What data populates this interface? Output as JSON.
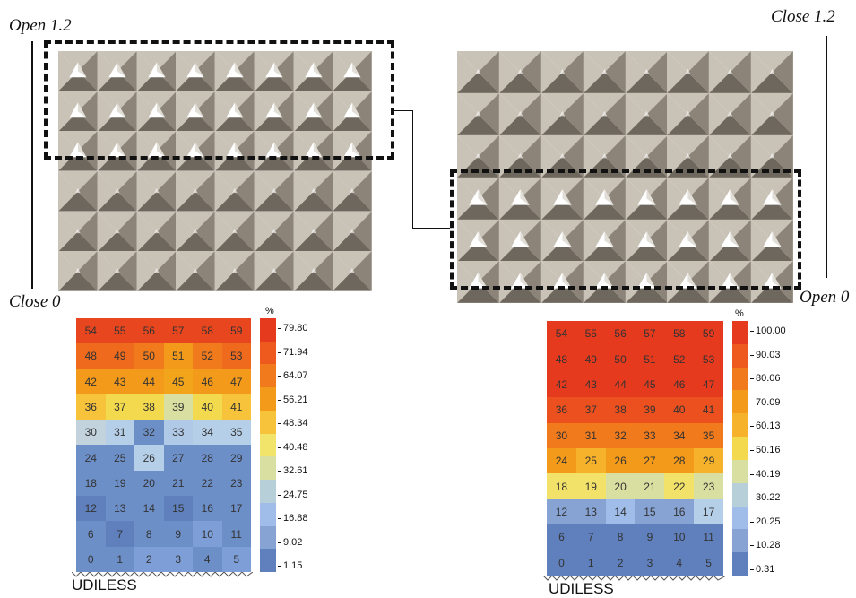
{
  "labels": {
    "open_top_left": "Open 1.2",
    "close_bottom_left": "Close 0",
    "close_top_right": "Close 1.2",
    "open_bottom_right": "Open 0"
  },
  "colors": {
    "panel_light": "#ffffff",
    "panel_mid": "#c9c2b6",
    "panel_dark": "#8c8478",
    "panel_shadow": "#6e675d"
  },
  "left_chart": {
    "unit": "%",
    "footer": "UDILESS",
    "colorbar_ticks": [
      "79.80",
      "71.94",
      "64.07",
      "56.21",
      "48.34",
      "40.48",
      "32.61",
      "24.75",
      "16.88",
      "9.02",
      "1.15"
    ],
    "colorbar_colors": [
      "#e63a1e",
      "#ee5a1e",
      "#f07a1c",
      "#f39a1a",
      "#f6c33a",
      "#f2e46a",
      "#d8dfa0",
      "#b6cfd8",
      "#9fbde8",
      "#86a3d4",
      "#5f80bd"
    ],
    "rows": [
      {
        "labels": [
          "54",
          "55",
          "56",
          "57",
          "58",
          "59"
        ],
        "colors": [
          "#e8461e",
          "#e8461e",
          "#e8461e",
          "#e8461e",
          "#e8461e",
          "#e8461e"
        ]
      },
      {
        "labels": [
          "48",
          "49",
          "50",
          "51",
          "52",
          "53"
        ],
        "colors": [
          "#ef6a1c",
          "#ef6a1c",
          "#f07a1c",
          "#f39a1a",
          "#f07a1c",
          "#ef6a1c"
        ]
      },
      {
        "labels": [
          "42",
          "43",
          "44",
          "45",
          "46",
          "47"
        ],
        "colors": [
          "#f39a1a",
          "#f39a1a",
          "#f39a1a",
          "#f2a41a",
          "#f39a1a",
          "#f39a1a"
        ]
      },
      {
        "labels": [
          "36",
          "37",
          "38",
          "39",
          "40",
          "41"
        ],
        "colors": [
          "#f6c33a",
          "#f3d94e",
          "#f3d94e",
          "#d8dfa0",
          "#f3d94e",
          "#f6c33a"
        ]
      },
      {
        "labels": [
          "30",
          "31",
          "32",
          "33",
          "34",
          "35"
        ],
        "colors": [
          "#c3d3de",
          "#b6cfe8",
          "#6d8fc8",
          "#b0c9e6",
          "#b6cfe8",
          "#b6cfe8"
        ]
      },
      {
        "labels": [
          "24",
          "25",
          "26",
          "27",
          "28",
          "29"
        ],
        "colors": [
          "#6d8fc8",
          "#6d8fc8",
          "#b6cfe8",
          "#6d8fc8",
          "#6d8fc8",
          "#6d8fc8"
        ]
      },
      {
        "labels": [
          "18",
          "19",
          "20",
          "21",
          "22",
          "23"
        ],
        "colors": [
          "#6d8fc8",
          "#6d8fc8",
          "#6d8fc8",
          "#6d8fc8",
          "#6d8fc8",
          "#6d8fc8"
        ]
      },
      {
        "labels": [
          "12",
          "13",
          "14",
          "15",
          "16",
          "17"
        ],
        "colors": [
          "#5f80bd",
          "#6d8fc8",
          "#6d8fc8",
          "#5f80bd",
          "#6d8fc8",
          "#6d8fc8"
        ]
      },
      {
        "labels": [
          "6",
          "7",
          "8",
          "9",
          "10",
          "11"
        ],
        "colors": [
          "#6d8fc8",
          "#5f80bd",
          "#6d8fc8",
          "#6d8fc8",
          "#7d9ed6",
          "#6d8fc8"
        ]
      },
      {
        "labels": [
          "0",
          "1",
          "2",
          "3",
          "4",
          "5"
        ],
        "colors": [
          "#6d8fc8",
          "#6d8fc8",
          "#7d9ed6",
          "#7d9ed6",
          "#6d8fc8",
          "#7d9ed6"
        ]
      }
    ]
  },
  "right_chart": {
    "unit": "%",
    "footer": "UDILESS",
    "colorbar_ticks": [
      "100.00",
      "90.03",
      "80.06",
      "70.09",
      "60.13",
      "50.16",
      "40.19",
      "30.22",
      "20.25",
      "10.28",
      "0.31"
    ],
    "colorbar_colors": [
      "#e63a1e",
      "#ee5a1e",
      "#f07a1c",
      "#f39a1a",
      "#f6b22a",
      "#f3d94e",
      "#d8dfa0",
      "#b6cfd8",
      "#9fbde8",
      "#86a3d4",
      "#5f80bd"
    ],
    "rows": [
      {
        "labels": [
          "54",
          "55",
          "56",
          "57",
          "58",
          "59"
        ],
        "colors": [
          "#e63a1e",
          "#e63a1e",
          "#e63a1e",
          "#e63a1e",
          "#e63a1e",
          "#e63a1e"
        ]
      },
      {
        "labels": [
          "48",
          "49",
          "50",
          "51",
          "52",
          "53"
        ],
        "colors": [
          "#e63a1e",
          "#e63a1e",
          "#e63a1e",
          "#e63a1e",
          "#e63a1e",
          "#e63a1e"
        ]
      },
      {
        "labels": [
          "42",
          "43",
          "44",
          "45",
          "46",
          "47"
        ],
        "colors": [
          "#e63a1e",
          "#e63a1e",
          "#e63a1e",
          "#e63a1e",
          "#e63a1e",
          "#e63a1e"
        ]
      },
      {
        "labels": [
          "36",
          "37",
          "38",
          "39",
          "40",
          "41"
        ],
        "colors": [
          "#ec501e",
          "#ec501e",
          "#ec501e",
          "#ec501e",
          "#ec501e",
          "#ec501e"
        ]
      },
      {
        "labels": [
          "30",
          "31",
          "32",
          "33",
          "34",
          "35"
        ],
        "colors": [
          "#f07a1c",
          "#f07a1c",
          "#f07a1c",
          "#f07a1c",
          "#f07a1c",
          "#f07a1c"
        ]
      },
      {
        "labels": [
          "24",
          "25",
          "26",
          "27",
          "28",
          "29"
        ],
        "colors": [
          "#f39a1a",
          "#f6b22a",
          "#f39a1a",
          "#f39a1a",
          "#f39a1a",
          "#f6b22a"
        ]
      },
      {
        "labels": [
          "18",
          "19",
          "20",
          "21",
          "22",
          "23"
        ],
        "colors": [
          "#f3e26a",
          "#f3e26a",
          "#d8dfa0",
          "#d8dfa0",
          "#f3e26a",
          "#d8dfa0"
        ]
      },
      {
        "labels": [
          "12",
          "13",
          "14",
          "15",
          "16",
          "17"
        ],
        "colors": [
          "#86a3d4",
          "#86a3d4",
          "#9fbde8",
          "#86a3d4",
          "#86a3d4",
          "#b6cfe8"
        ]
      },
      {
        "labels": [
          "6",
          "7",
          "8",
          "9",
          "10",
          "11"
        ],
        "colors": [
          "#5f80bd",
          "#5f80bd",
          "#5f80bd",
          "#5f80bd",
          "#5f80bd",
          "#5f80bd"
        ]
      },
      {
        "labels": [
          "0",
          "1",
          "2",
          "3",
          "4",
          "5"
        ],
        "colors": [
          "#5f80bd",
          "#5f80bd",
          "#5f80bd",
          "#5f80bd",
          "#5f80bd",
          "#5f80bd"
        ]
      }
    ]
  }
}
